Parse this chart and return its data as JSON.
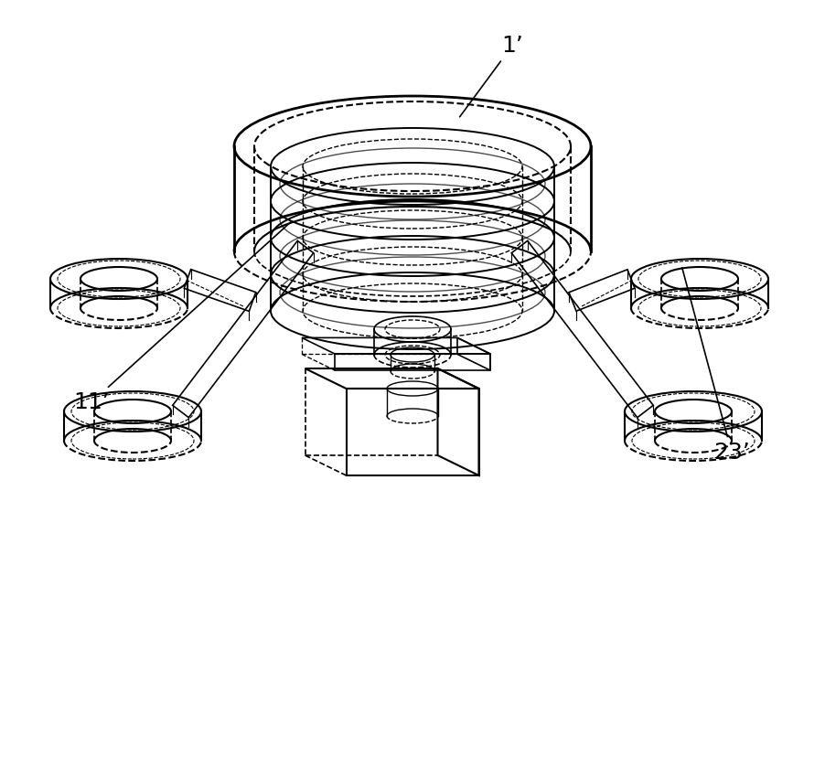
{
  "bg_color": "#ffffff",
  "line_color": "#000000",
  "dashed_color": "#555555",
  "labels": {
    "1prime": "1’",
    "11prime": "11’",
    "23prime": "23’"
  },
  "label_positions": {
    "1prime": [
      0.58,
      0.93
    ],
    "11prime": [
      0.12,
      0.47
    ],
    "23prime": [
      0.88,
      0.4
    ]
  }
}
